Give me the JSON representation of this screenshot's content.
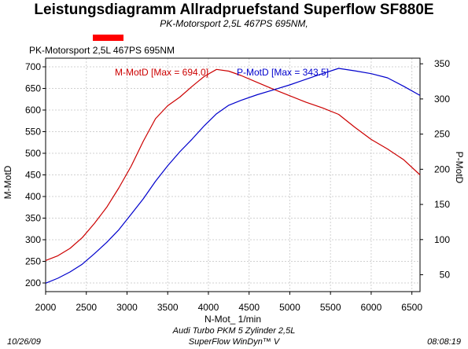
{
  "header": {
    "title": "Leistungsdiagramm Allradpruefstand Superflow SF880E",
    "subtitle": "PK-Motorsport 2,5L 467PS 695NM,"
  },
  "legend": {
    "label": "PK-Motorsport 2,5L 467PS 695NM",
    "swatch_color": "#ff0000"
  },
  "footer": {
    "date": "10/26/09",
    "vehicle": "Audi Turbo PKM 5 Zylinder 2,5L",
    "software": "SuperFlow WinDyn™ V",
    "time": "08:08:19"
  },
  "chart_data": {
    "type": "line",
    "xlabel": "N-Mot_ 1/min",
    "ylabel": "M-MotD",
    "y2label": "P-MotD",
    "xlim": [
      2000,
      6600
    ],
    "ylim": [
      180,
      720
    ],
    "y2lim": [
      26,
      358
    ],
    "x_ticks": [
      2000,
      2500,
      3000,
      3500,
      4000,
      4500,
      5000,
      5500,
      6000,
      6500
    ],
    "y_ticks": [
      200,
      250,
      300,
      350,
      400,
      450,
      500,
      550,
      600,
      650,
      700
    ],
    "y2_ticks": [
      50,
      100,
      150,
      200,
      250,
      300,
      350
    ],
    "grid": true,
    "series": [
      {
        "name": "M-MotD [Max = 694.0]",
        "axis": "left",
        "color": "#cc0000",
        "x": [
          2000,
          2150,
          2300,
          2450,
          2600,
          2750,
          2900,
          3050,
          3200,
          3350,
          3500,
          3650,
          3800,
          3950,
          4100,
          4250,
          4400,
          4600,
          4800,
          5000,
          5200,
          5400,
          5600,
          5800,
          6000,
          6200,
          6400,
          6600
        ],
        "y": [
          252,
          263,
          280,
          305,
          338,
          375,
          420,
          470,
          528,
          580,
          610,
          630,
          655,
          678,
          694,
          690,
          680,
          664,
          648,
          633,
          618,
          605,
          590,
          560,
          532,
          510,
          485,
          450
        ]
      },
      {
        "name": "P-MotD [Max = 343.5]",
        "axis": "right",
        "color": "#0000cc",
        "x": [
          2000,
          2150,
          2300,
          2450,
          2600,
          2750,
          2900,
          3050,
          3200,
          3350,
          3500,
          3650,
          3800,
          3950,
          4100,
          4250,
          4400,
          4600,
          4800,
          5000,
          5200,
          5400,
          5600,
          5800,
          6000,
          6200,
          6400,
          6600
        ],
        "y": [
          38,
          45,
          54,
          65,
          80,
          96,
          114,
          136,
          158,
          183,
          205,
          225,
          243,
          262,
          279,
          291,
          298,
          306,
          313,
          320,
          328,
          336,
          343.5,
          340,
          336,
          330,
          318,
          305
        ]
      }
    ]
  }
}
